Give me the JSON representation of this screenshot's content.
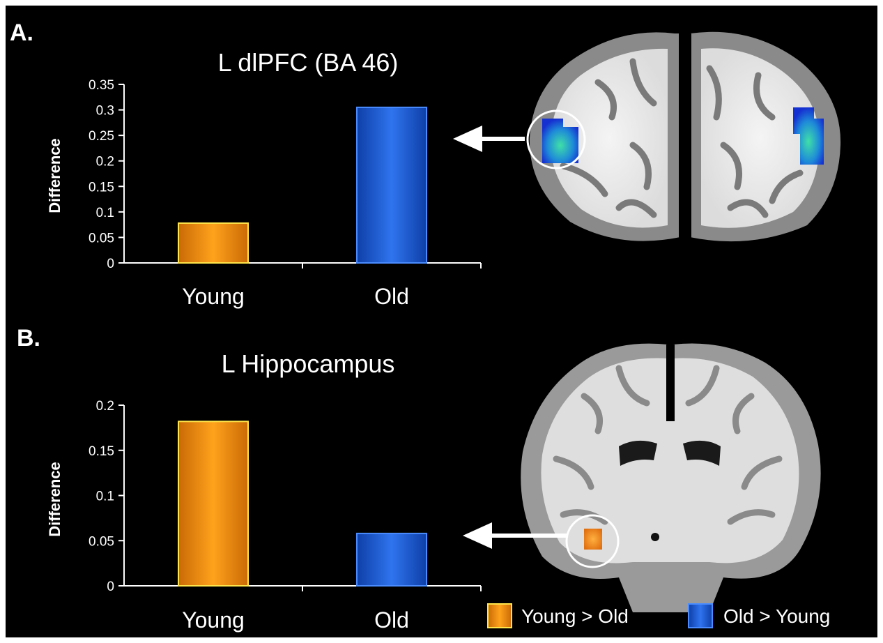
{
  "colors": {
    "young_fill": "#f28c0f",
    "young_edge": "#ffe44a",
    "old_fill": "#1a5cd6",
    "old_edge": "#4a8cff",
    "background": "#000000"
  },
  "chart_data": [
    {
      "type": "bar",
      "panel_label": "A.",
      "title": "L dlPFC (BA 46)",
      "ylabel": "Difference",
      "xlabel": "",
      "categories": [
        "Young",
        "Old"
      ],
      "values": [
        0.078,
        0.305
      ],
      "ylim": [
        0,
        0.35
      ],
      "yticks": [
        "0",
        "0.05",
        "0.1",
        "0.15",
        "0.2",
        "0.25",
        "0.3",
        "0.35"
      ],
      "grid": false
    },
    {
      "type": "bar",
      "panel_label": "B.",
      "title": "L Hippocampus",
      "ylabel": "Difference",
      "xlabel": "",
      "categories": [
        "Young",
        "Old"
      ],
      "values": [
        0.182,
        0.058
      ],
      "ylim": [
        0,
        0.2
      ],
      "yticks": [
        "0",
        "0.05",
        "0.1",
        "0.15",
        "0.2"
      ],
      "grid": false
    }
  ],
  "brain_images": [
    {
      "view": "axial",
      "highlight": "blue-activation-left-dlpfc"
    },
    {
      "view": "coronal",
      "highlight": "orange-activation-left-hippocampus"
    }
  ],
  "legend": {
    "items": [
      {
        "label": "Young > Old",
        "color": "#f28c0f"
      },
      {
        "label": "Old > Young",
        "color": "#1a5cd6"
      }
    ],
    "placement": "bottom-right"
  }
}
